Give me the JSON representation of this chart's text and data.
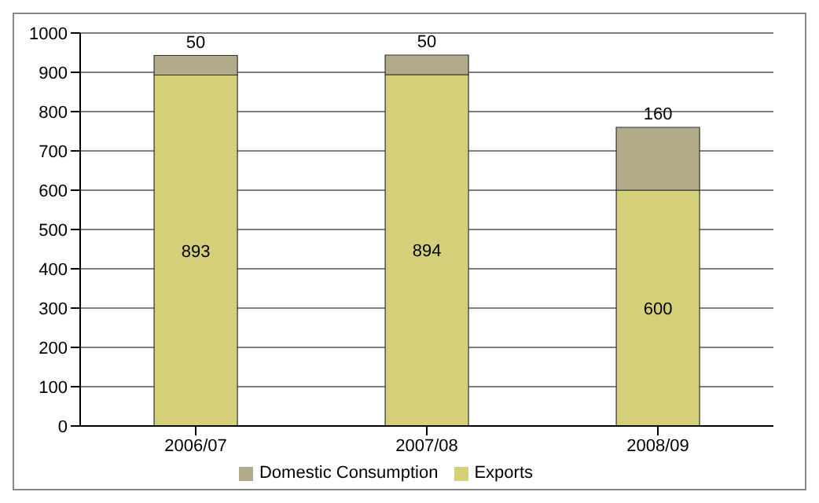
{
  "chart_data": {
    "type": "bar",
    "stacked": true,
    "categories": [
      "2006/07",
      "2007/08",
      "2008/09"
    ],
    "series": [
      {
        "name": "Exports",
        "color": "#d4cf78",
        "values": [
          893,
          894,
          600
        ]
      },
      {
        "name": "Domestic Consumption",
        "color": "#b3aa8a",
        "values": [
          50,
          50,
          160
        ]
      }
    ],
    "ylim": [
      0,
      1000
    ],
    "yticks": [
      0,
      100,
      200,
      300,
      400,
      500,
      600,
      700,
      800,
      900,
      1000
    ],
    "grid": "y",
    "legend": "bottom",
    "data_labels": true
  }
}
